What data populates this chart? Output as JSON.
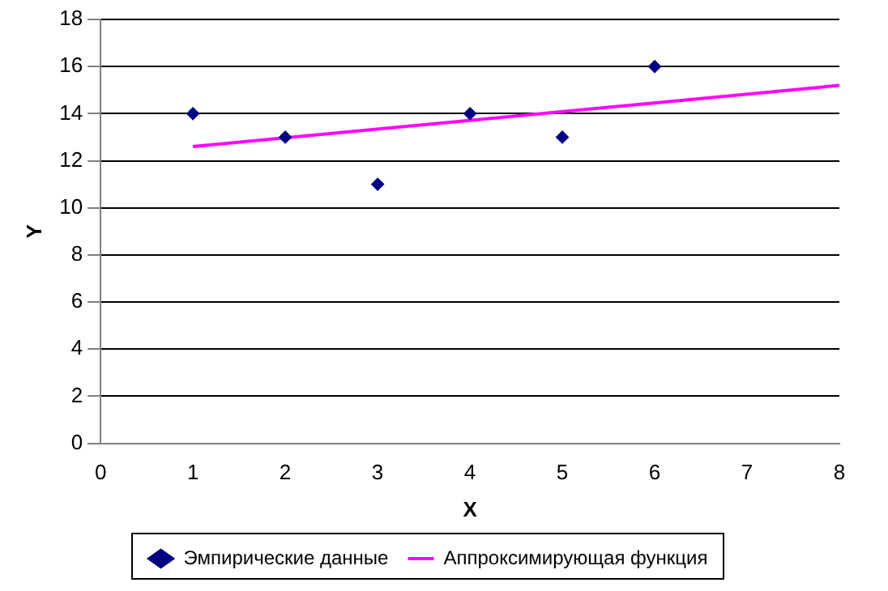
{
  "chart_data": {
    "type": "scatter",
    "xlabel": "X",
    "ylabel": "Y",
    "xlim": [
      0,
      8
    ],
    "xticks": [
      0,
      1,
      2,
      3,
      4,
      5,
      6,
      7,
      8
    ],
    "ylim": [
      0,
      18
    ],
    "yticks": [
      0,
      2,
      4,
      6,
      8,
      10,
      12,
      14,
      16,
      18
    ],
    "grid": "y",
    "legend": "bottom",
    "series": [
      {
        "name": "Эмпирические данные",
        "type": "scatter",
        "color": "#000080",
        "marker": "diamond",
        "x": [
          1,
          2,
          3,
          4,
          5,
          6
        ],
        "values": [
          14,
          13,
          11,
          14,
          13,
          16
        ]
      },
      {
        "name": "Аппроксимирующая функция",
        "type": "line",
        "color": "#ff00ff",
        "marker": "none",
        "x": [
          1,
          8
        ],
        "values": [
          12.6,
          15.2
        ]
      }
    ]
  }
}
